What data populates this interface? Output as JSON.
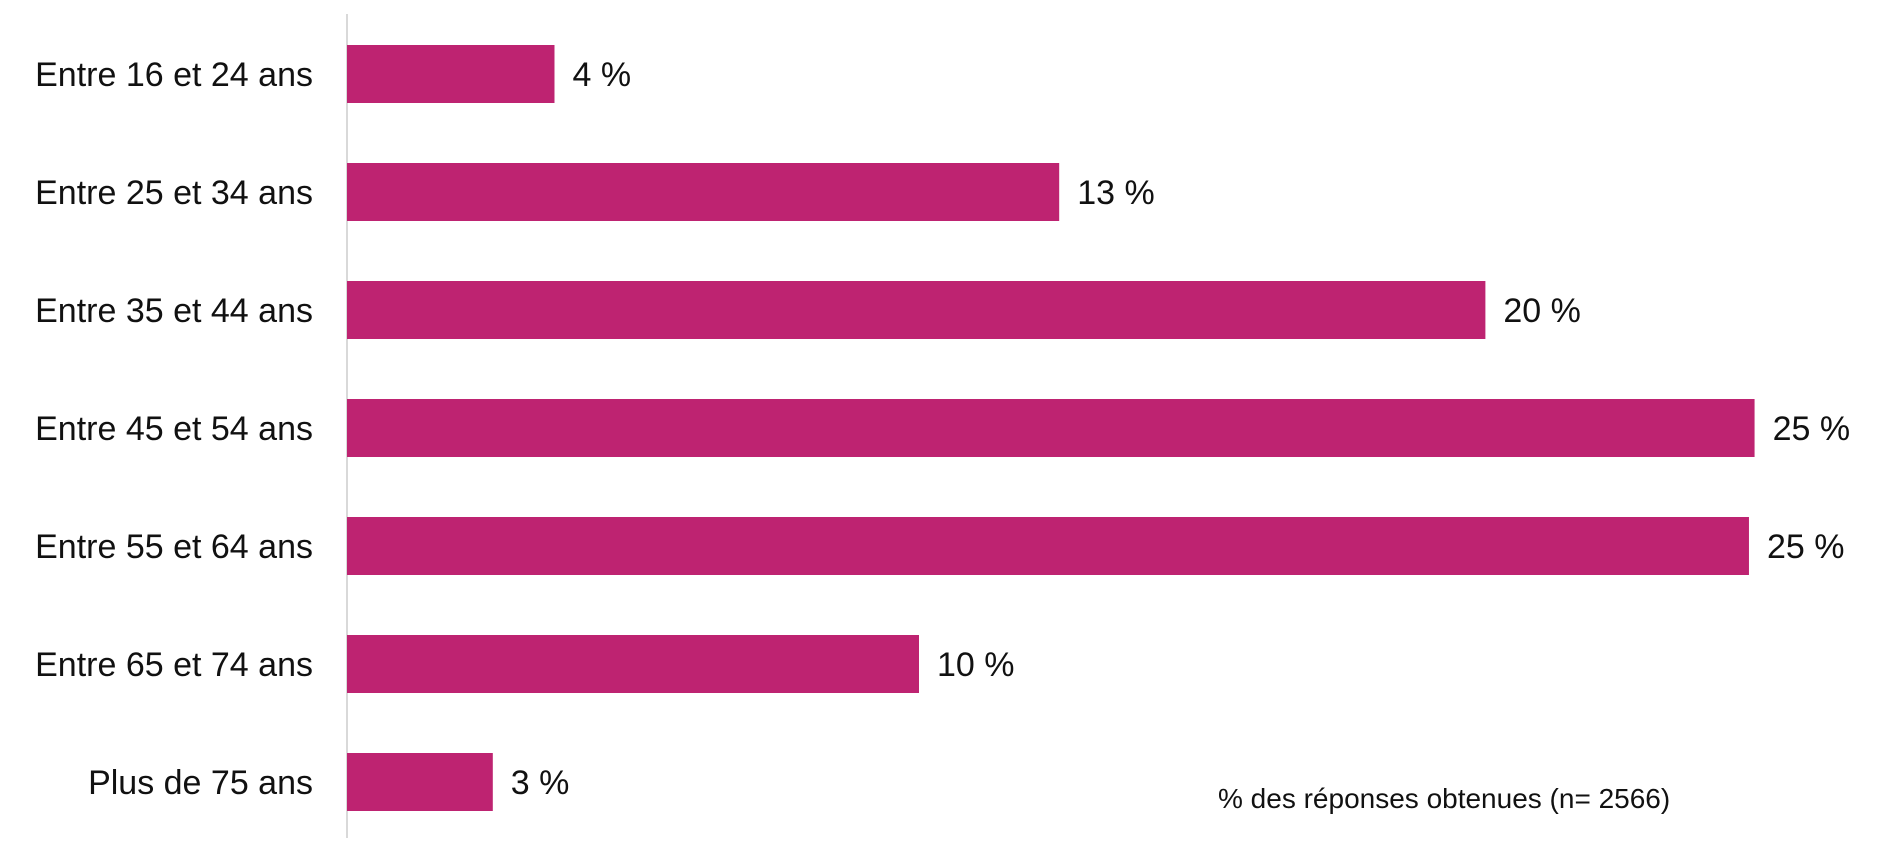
{
  "chart_data": {
    "type": "bar",
    "orientation": "horizontal",
    "categories": [
      "Entre 16 et 24 ans",
      "Entre 25 et 34 ans",
      "Entre 35 et 44 ans",
      "Entre 45 et 54 ans",
      "Entre 55 et 64 ans",
      "Entre 65 et 74 ans",
      "Plus de 75 ans"
    ],
    "values": [
      3.7,
      12.7,
      20.3,
      25.1,
      25.0,
      10.2,
      2.6
    ],
    "value_labels": [
      "4 %",
      "13 %",
      "20 %",
      "25 %",
      "25 %",
      "10 %",
      "3 %"
    ],
    "note": "% des réponses obtenues  (n= 2566)",
    "xlim": [
      0,
      25.5
    ],
    "grid": false,
    "legend": "none",
    "bar_color": "#BE2371",
    "axis_color": "#D9D9D9"
  }
}
